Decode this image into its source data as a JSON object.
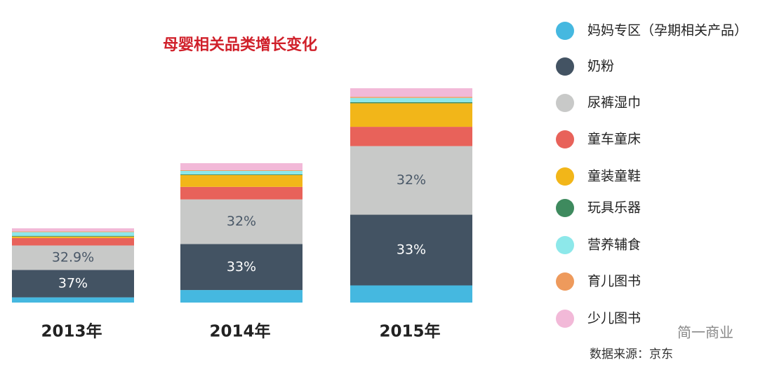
{
  "chart_data": {
    "type": "stacked_bar",
    "title": "母婴相关品类增长变化",
    "categories": [
      "2013年",
      "2014年",
      "2015年"
    ],
    "series": [
      {
        "name": "妈妈专区（孕期相关产品）",
        "color": "#45b8e0",
        "values": [
          7,
          9,
          8
        ]
      },
      {
        "name": "奶粉",
        "color": "#435363",
        "values": [
          37,
          33,
          33
        ],
        "value_labels": [
          "37%",
          "33%",
          "33%"
        ]
      },
      {
        "name": "尿裤湿巾",
        "color": "#c8c9c8",
        "values": [
          32.9,
          32,
          32
        ],
        "value_labels": [
          "32.9%",
          "32%",
          "32%"
        ]
      },
      {
        "name": "童车童床",
        "color": "#e8625a",
        "values": [
          10,
          9,
          9
        ]
      },
      {
        "name": "童装童鞋",
        "color": "#f2b619",
        "values": [
          2,
          8.5,
          11
        ]
      },
      {
        "name": "玩具乐器",
        "color": "#3e8a5e",
        "values": [
          1,
          0.5,
          0.5
        ]
      },
      {
        "name": "营养辅食",
        "color": "#8de8ea",
        "values": [
          5,
          2.5,
          2
        ]
      },
      {
        "name": "育儿图书",
        "color": "#ee9a5c",
        "values": [
          1,
          0.5,
          0.5
        ]
      },
      {
        "name": "少儿图书",
        "color": "#f2b9d8",
        "values": [
          4.1,
          5,
          4
        ]
      }
    ],
    "source": "数据来源：京东",
    "watermark": "简一商业"
  }
}
